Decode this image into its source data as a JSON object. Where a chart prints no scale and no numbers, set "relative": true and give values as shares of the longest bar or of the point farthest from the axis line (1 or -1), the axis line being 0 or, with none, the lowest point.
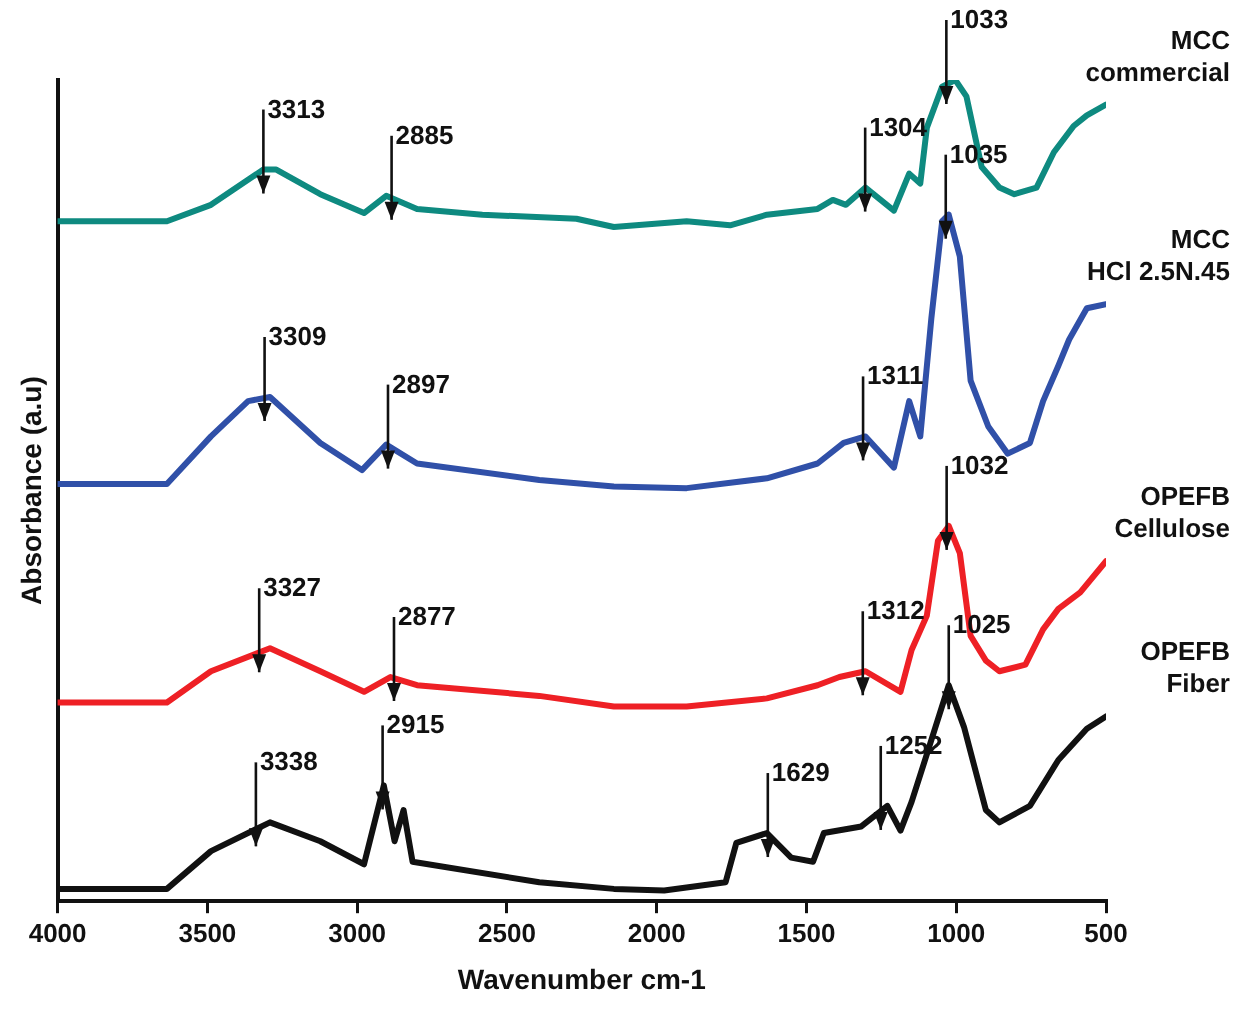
{
  "chart_data": {
    "type": "line",
    "relative": true,
    "xlabel": "Wavenumber cm-1",
    "ylabel": "Absorbance (a.u)",
    "xlim": [
      4000,
      500
    ],
    "xticks": [
      4000,
      3500,
      3000,
      2500,
      2000,
      1500,
      1000,
      500
    ],
    "marker": "none",
    "line_style": "solid",
    "series": [
      {
        "name": "MCC commercial",
        "color": "#0e8a80",
        "x": [
          4000,
          3635,
          3488,
          3313,
          3270,
          3123,
          2977,
          2903,
          2800,
          2582,
          2268,
          2143,
          1900,
          1755,
          1632,
          1463,
          1412,
          1368,
          1303,
          1208,
          1157,
          1120,
          1098,
          1047,
          1003,
          966,
          915,
          856,
          806,
          732,
          674,
          608,
          564,
          500
        ],
        "values": [
          0.828,
          0.828,
          0.848,
          0.891,
          0.891,
          0.861,
          0.838,
          0.859,
          0.843,
          0.836,
          0.831,
          0.821,
          0.828,
          0.823,
          0.836,
          0.843,
          0.854,
          0.848,
          0.869,
          0.841,
          0.886,
          0.874,
          0.942,
          0.992,
          1.0,
          0.98,
          0.894,
          0.869,
          0.861,
          0.869,
          0.912,
          0.944,
          0.957,
          0.97
        ]
      },
      {
        "name": "MCC HCl 2.5N.45",
        "color": "#3050a8",
        "x": [
          4000,
          3635,
          3488,
          3364,
          3291,
          3123,
          2984,
          2903,
          2800,
          2392,
          2143,
          1900,
          1632,
          1463,
          1376,
          1303,
          1208,
          1157,
          1120,
          1083,
          1047,
          1025,
          988,
          952,
          893,
          828,
          754,
          710,
          659,
          623,
          564,
          500
        ],
        "values": [
          0.508,
          0.508,
          0.566,
          0.609,
          0.614,
          0.558,
          0.525,
          0.556,
          0.533,
          0.513,
          0.505,
          0.503,
          0.515,
          0.533,
          0.558,
          0.566,
          0.528,
          0.609,
          0.566,
          0.71,
          0.828,
          0.836,
          0.785,
          0.634,
          0.578,
          0.545,
          0.558,
          0.609,
          0.652,
          0.684,
          0.722,
          0.727
        ]
      },
      {
        "name": "OPEFB Cellulose",
        "color": "#ee2025",
        "x": [
          4000,
          3635,
          3488,
          3291,
          3123,
          2977,
          2889,
          2800,
          2392,
          2143,
          1900,
          1632,
          1463,
          1390,
          1303,
          1186,
          1149,
          1098,
          1061,
          1025,
          988,
          952,
          901,
          856,
          769,
          710,
          659,
          586,
          500
        ],
        "values": [
          0.242,
          0.242,
          0.28,
          0.308,
          0.28,
          0.255,
          0.273,
          0.263,
          0.25,
          0.237,
          0.237,
          0.247,
          0.263,
          0.273,
          0.28,
          0.255,
          0.306,
          0.348,
          0.439,
          0.457,
          0.424,
          0.323,
          0.293,
          0.28,
          0.288,
          0.331,
          0.356,
          0.376,
          0.414
        ]
      },
      {
        "name": "OPEFB Fiber",
        "color": "#111111",
        "x": [
          4000,
          3635,
          3488,
          3291,
          3123,
          2977,
          2911,
          2875,
          2845,
          2815,
          2392,
          2143,
          1975,
          1770,
          1734,
          1632,
          1551,
          1478,
          1442,
          1317,
          1230,
          1186,
          1149,
          1098,
          1025,
          974,
          901,
          856,
          754,
          659,
          564,
          500
        ],
        "values": [
          0.015,
          0.015,
          0.061,
          0.096,
          0.073,
          0.045,
          0.141,
          0.073,
          0.111,
          0.048,
          0.023,
          0.015,
          0.013,
          0.023,
          0.071,
          0.083,
          0.053,
          0.048,
          0.083,
          0.091,
          0.116,
          0.086,
          0.121,
          0.179,
          0.263,
          0.212,
          0.111,
          0.096,
          0.116,
          0.172,
          0.21,
          0.225
        ]
      }
    ],
    "annotations": [
      {
        "text": "3313",
        "x": 3313,
        "y": 0.891
      },
      {
        "text": "2885",
        "x": 2885,
        "y": 0.859
      },
      {
        "text": "1304",
        "x": 1304,
        "y": 0.869
      },
      {
        "text": "1033",
        "x": 1033,
        "y": 1.0
      },
      {
        "text": "3309",
        "x": 3309,
        "y": 0.614
      },
      {
        "text": "2897",
        "x": 2897,
        "y": 0.556
      },
      {
        "text": "1311",
        "x": 1311,
        "y": 0.566
      },
      {
        "text": "1035",
        "x": 1035,
        "y": 0.836
      },
      {
        "text": "3327",
        "x": 3327,
        "y": 0.308
      },
      {
        "text": "2877",
        "x": 2877,
        "y": 0.273
      },
      {
        "text": "1312",
        "x": 1312,
        "y": 0.28
      },
      {
        "text": "1032",
        "x": 1032,
        "y": 0.457
      },
      {
        "text": "3338",
        "x": 3338,
        "y": 0.096
      },
      {
        "text": "2915",
        "x": 2915,
        "y": 0.141
      },
      {
        "text": "1629",
        "x": 1629,
        "y": 0.083
      },
      {
        "text": "1252",
        "x": 1252,
        "y": 0.116
      },
      {
        "text": "1025",
        "x": 1025,
        "y": 0.263
      }
    ]
  }
}
